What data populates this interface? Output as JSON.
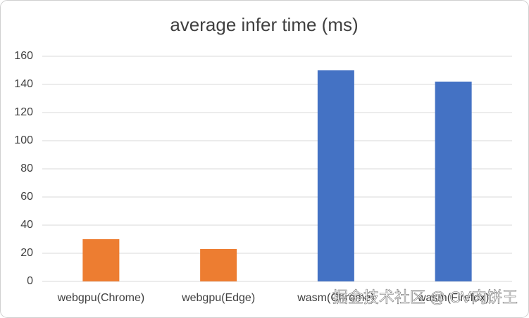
{
  "chart_data": {
    "type": "bar",
    "title": "average infer time (ms)",
    "categories": [
      "webgpu(Chrome)",
      "webgpu(Edge)",
      "wasm(Chrome)",
      "wasm(Firefox)"
    ],
    "values": [
      30,
      23,
      150,
      142
    ],
    "colors": [
      "#ed7d31",
      "#ed7d31",
      "#4472c4",
      "#4472c4"
    ],
    "ylim": [
      0,
      160
    ],
    "yticks": [
      0,
      20,
      40,
      60,
      80,
      100,
      120,
      140,
      160
    ],
    "grid": true
  },
  "watermark": "掘金技术社区 @ CV肉饼王"
}
